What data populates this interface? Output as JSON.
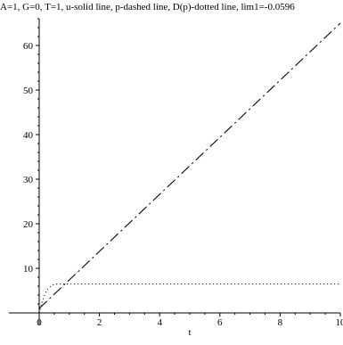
{
  "chart_data": {
    "type": "line",
    "title": "A=1, G=0, T=1, u-solid line, p-dashed line, D(p)-dotted line, lim1=-0.0596",
    "xlabel": "t",
    "ylabel": "",
    "xlim": [
      0,
      10
    ],
    "ylim": [
      -2,
      66
    ],
    "x_ticks": [
      0,
      2,
      4,
      6,
      8,
      10
    ],
    "y_ticks": [
      10,
      20,
      30,
      40,
      50,
      60
    ],
    "grid": false,
    "series": [
      {
        "name": "u",
        "style": "solid",
        "x": [
          0,
          10
        ],
        "y": [
          0,
          0
        ]
      },
      {
        "name": "p",
        "style": "dashed",
        "x": [
          0,
          10
        ],
        "y": [
          1,
          65
        ]
      },
      {
        "name": "D(p)",
        "style": "dotted",
        "x": [
          0,
          0.1,
          0.2,
          0.3,
          0.4,
          0.5,
          0.6,
          0.7,
          0.8,
          10
        ],
        "y": [
          0,
          2.5,
          4.4,
          5.5,
          6.1,
          6.4,
          6.5,
          6.5,
          6.5,
          6.5
        ]
      }
    ]
  }
}
